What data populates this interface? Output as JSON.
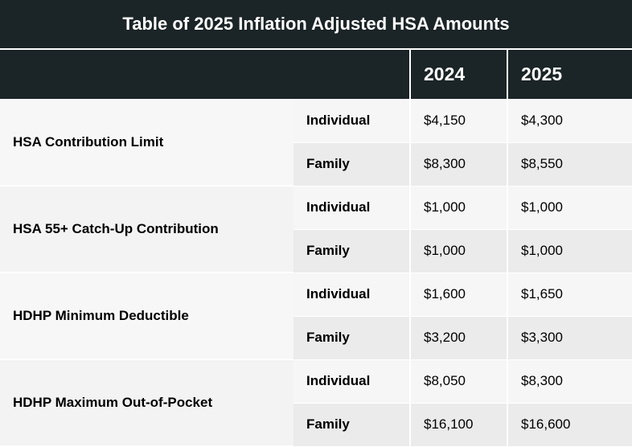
{
  "title": "Table of 2025 Inflation Adjusted HSA Amounts",
  "header": {
    "col_2024": "2024",
    "col_2025": "2025"
  },
  "rows": [
    {
      "metric": "HSA Contribution Limit",
      "sub": [
        {
          "label": "Individual",
          "v2024": "$4,150",
          "v2025": "$4,300"
        },
        {
          "label": "Family",
          "v2024": "$8,300",
          "v2025": "$8,550"
        }
      ]
    },
    {
      "metric": "HSA 55+ Catch-Up Contribution",
      "sub": [
        {
          "label": "Individual",
          "v2024": "$1,000",
          "v2025": "$1,000"
        },
        {
          "label": "Family",
          "v2024": "$1,000",
          "v2025": "$1,000"
        }
      ]
    },
    {
      "metric": "HDHP Minimum Deductible",
      "sub": [
        {
          "label": "Individual",
          "v2024": "$1,600",
          "v2025": "$1,650"
        },
        {
          "label": "Family",
          "v2024": "$3,200",
          "v2025": "$3,300"
        }
      ]
    },
    {
      "metric": "HDHP Maximum Out-of-Pocket",
      "sub": [
        {
          "label": "Individual",
          "v2024": "$8,050",
          "v2025": "$8,300"
        },
        {
          "label": "Family",
          "v2024": "$16,100",
          "v2025": "$16,600"
        }
      ]
    }
  ]
}
